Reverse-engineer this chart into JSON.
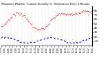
{
  "title": "Milwaukee Weather  Outdoor Humidity vs. Temperature Every 5 Minutes",
  "bg_color": "#ffffff",
  "plot_bg": "#ffffff",
  "grid_color": "#b0b0b0",
  "red_color": "#dd0000",
  "blue_color": "#0000cc",
  "ylim": [
    0,
    90
  ],
  "yticks": [
    10,
    20,
    30,
    40,
    50,
    60,
    70,
    80
  ],
  "n_points": 288,
  "temp_seed": 7,
  "hum_seed": 13
}
